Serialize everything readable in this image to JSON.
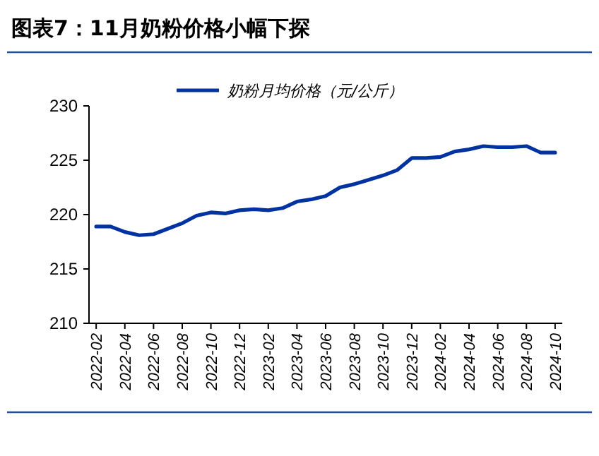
{
  "chart_data": {
    "type": "line",
    "title": "图表7：11月奶粉价格小幅下探",
    "categories": [
      "2022-02",
      null,
      "2022-04",
      null,
      "2022-06",
      null,
      "2022-08",
      null,
      "2022-10",
      null,
      "2022-12",
      null,
      "2023-02",
      null,
      "2023-04",
      null,
      "2023-06",
      null,
      "2023-08",
      null,
      "2023-10",
      null,
      "2023-12",
      null,
      "2024-02",
      null,
      "2024-04",
      null,
      "2024-06",
      null,
      "2024-08",
      null,
      "2024-10"
    ],
    "series": [
      {
        "name": "奶粉月均价格（元/公斤）",
        "color": "#0033a0",
        "values": [
          218.9,
          218.9,
          218.4,
          218.1,
          218.2,
          218.7,
          219.2,
          219.9,
          220.2,
          220.1,
          220.4,
          220.5,
          220.4,
          220.6,
          221.2,
          221.4,
          221.7,
          222.5,
          222.8,
          223.2,
          223.6,
          224.1,
          225.2,
          225.2,
          225.3,
          225.8,
          226.0,
          226.3,
          226.2,
          226.2,
          226.3,
          225.7,
          225.7
        ]
      }
    ],
    "ylim": [
      210,
      230
    ],
    "yticks": [
      210,
      215,
      220,
      225,
      230
    ],
    "legend": "top",
    "grid": false,
    "marker": "none",
    "line_style": "solid"
  }
}
